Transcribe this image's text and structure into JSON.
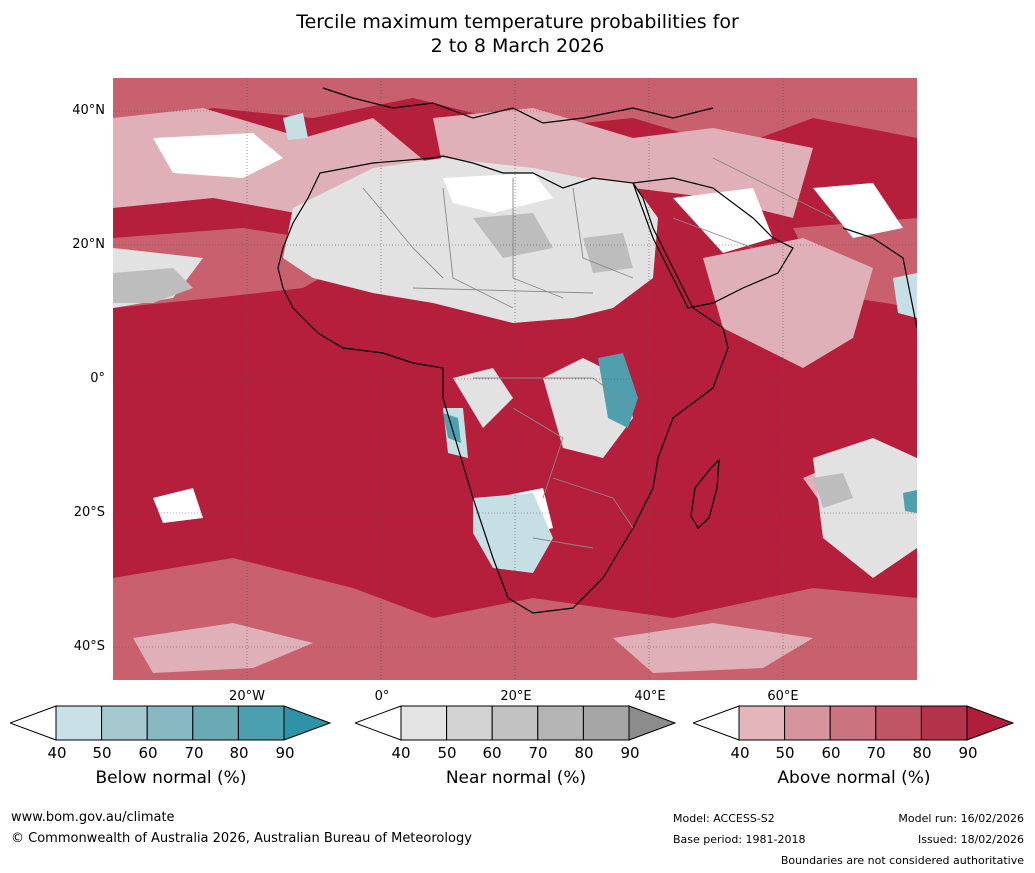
{
  "title": {
    "line1": "Tercile maximum temperature probabilities for",
    "line2": "2 to 8 March 2026"
  },
  "map": {
    "lat_labels": [
      "40°N",
      "20°N",
      "0°",
      "20°S",
      "40°S"
    ],
    "lon_labels": [
      "20°W",
      "0°",
      "20°E",
      "40°E",
      "60°E"
    ]
  },
  "legend": {
    "below": {
      "label": "Below normal (%)",
      "ticks": [
        "40",
        "50",
        "60",
        "70",
        "80",
        "90"
      ],
      "colors": [
        "#ffffff",
        "#c8e0e6",
        "#a6c9d0",
        "#87b7c1",
        "#6aaab5",
        "#4b9fae",
        "#2f93a8"
      ]
    },
    "near": {
      "label": "Near normal (%)",
      "ticks": [
        "40",
        "50",
        "60",
        "70",
        "80",
        "90"
      ],
      "colors": [
        "#ffffff",
        "#e4e4e4",
        "#d2d2d2",
        "#c2c2c2",
        "#b4b4b4",
        "#a6a6a6",
        "#8c8c8c"
      ]
    },
    "above": {
      "label": "Above normal (%)",
      "ticks": [
        "40",
        "50",
        "60",
        "70",
        "80",
        "90"
      ],
      "colors": [
        "#ffffff",
        "#e3b6bc",
        "#d6959e",
        "#cb737e",
        "#c05566",
        "#b3344a",
        "#b11e3b"
      ]
    }
  },
  "footer": {
    "website": "www.bom.gov.au/climate",
    "copyright": "© Commonwealth of Australia 2026, Australian Bureau of Meteorology",
    "model": "Model: ACCESS-S2",
    "base_period": "Base period: 1981-2018",
    "model_run": "Model run: 16/02/2026",
    "issued": "Issued: 18/02/2026",
    "disclaimer": "Boundaries are not considered authoritative"
  }
}
